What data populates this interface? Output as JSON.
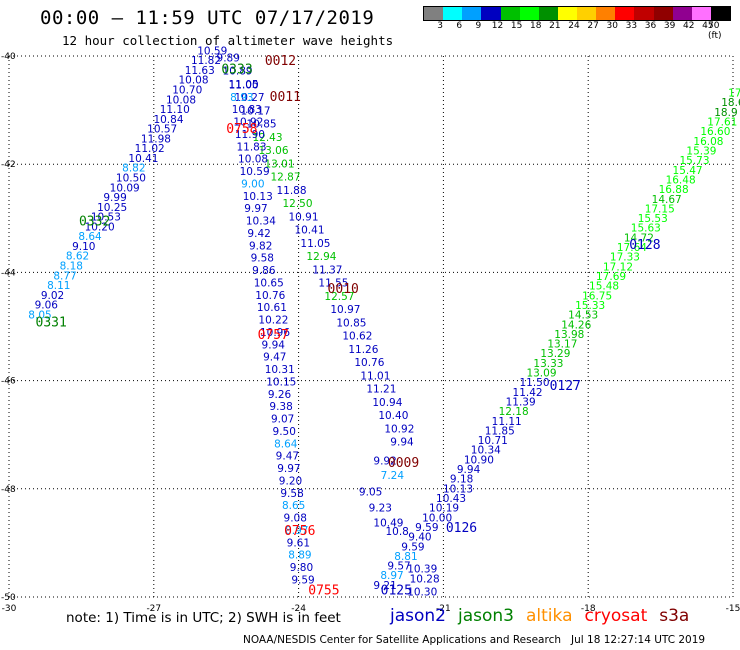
{
  "title": "00:00 – 11:59 UTC 07/17/2019",
  "subtitle": "12 hour collection of altimeter wave heights",
  "legend": {
    "colors": [
      "#808080",
      "#00ffff",
      "#00a0ff",
      "#0000c0",
      "#00c000",
      "#00ff00",
      "#009000",
      "#ffff00",
      "#ffd000",
      "#ff8000",
      "#ff0000",
      "#c00000",
      "#900000",
      "#900090",
      "#ff70ff",
      "#000000"
    ],
    "labels": [
      "3",
      "6",
      "9",
      "12",
      "15",
      "18",
      "21",
      "24",
      "27",
      "30",
      "33",
      "36",
      "39",
      "42",
      "45",
      "70 (ft)"
    ]
  },
  "note": "note: 1) Time is in UTC; 2) SWH is in feet",
  "satellites": [
    {
      "name": "jason2",
      "color": "#0000c0"
    },
    {
      "name": "jason3",
      "color": "#008000"
    },
    {
      "name": "altika",
      "color": "#ff9000"
    },
    {
      "name": "cryosat",
      "color": "#ff0000"
    },
    {
      "name": "s3a",
      "color": "#800000"
    }
  ],
  "credit": "NOAA/NESDIS Center for Satellite Applications and Research   Jul 18 12:27:14 UTC 2019",
  "map": {
    "lon_range": [
      -30,
      -15
    ],
    "lat_range": [
      -50,
      -40
    ],
    "lon_ticks": [
      "-30",
      "-27",
      "-24",
      "-21",
      "-18",
      "-15"
    ],
    "lat_ticks": [
      "-40",
      "-42",
      "-44",
      "-46",
      "-48",
      "-50"
    ],
    "grid": "dotted",
    "annotations": [
      {
        "text": "0012",
        "lon": -24.7,
        "lat": -40.17,
        "color": "#800000"
      },
      {
        "text": "0011",
        "lon": -24.6,
        "lat": -40.83,
        "color": "#800000"
      },
      {
        "text": "0758",
        "lon": -25.5,
        "lat": -41.42,
        "color": "#ff0000"
      },
      {
        "text": "0333",
        "lon": -25.6,
        "lat": -40.32,
        "color": "#008000"
      },
      {
        "text": "0332",
        "lon": -28.55,
        "lat": -43.13,
        "color": "#008000"
      },
      {
        "text": "0331",
        "lon": -29.45,
        "lat": -45.0,
        "color": "#008000"
      },
      {
        "text": "0010",
        "lon": -23.4,
        "lat": -44.38,
        "color": "#800000"
      },
      {
        "text": "0757",
        "lon": -24.85,
        "lat": -45.23,
        "color": "#ff0000"
      },
      {
        "text": "0009",
        "lon": -22.15,
        "lat": -47.6,
        "color": "#800000"
      },
      {
        "text": "0756",
        "lon": -24.3,
        "lat": -48.85,
        "color": "#ff0000"
      },
      {
        "text": "0755",
        "lon": -23.8,
        "lat": -49.95,
        "color": "#ff0000"
      },
      {
        "text": "0125",
        "lon": -22.3,
        "lat": -49.95,
        "color": "#0000c0"
      },
      {
        "text": "0126",
        "lon": -20.95,
        "lat": -48.8,
        "color": "#0000c0"
      },
      {
        "text": "0127",
        "lon": -18.8,
        "lat": -46.17,
        "color": "#0000c0"
      },
      {
        "text": "0128",
        "lon": -17.15,
        "lat": -43.57,
        "color": "#0000c0"
      }
    ],
    "tracks": [
      {
        "name": "jason3 0331-0333",
        "lon_start": -29.6,
        "lat_start": -44.85,
        "lon_end": -26.1,
        "lat_end": -39.97,
        "values": [
          "8.05",
          "9.06",
          "9.02",
          "8.11",
          "8.77",
          "8.18",
          "8.62",
          "9.10",
          "8.64",
          "10.20",
          "10.53",
          "10.25",
          "9.99",
          "10.09",
          "10.50",
          "8.82",
          "10.41",
          "11.02",
          "11.98",
          "10.57",
          "10.84",
          "11.10",
          "10.08",
          "10.70",
          "10.08",
          "11.63",
          "11.82",
          "10.59"
        ]
      },
      {
        "name": "s3a 0010-0012",
        "lon_start": -25.7,
        "lat_start": -40.1,
        "lon_end": -22.1,
        "lat_end": -47.2,
        "values": [
          "9.89",
          "10.89",
          "11.05",
          "10.27",
          "10.17",
          "10.85",
          "12.43",
          "13.06",
          "13.01",
          "12.87",
          "11.88",
          "12.50",
          "10.91",
          "10.41",
          "11.05",
          "12.94",
          "11.37",
          "11.55",
          "12.57",
          "10.97",
          "10.85",
          "10.62",
          "11.26",
          "10.76",
          "11.01",
          "11.21",
          "10.94",
          "10.40",
          "10.92",
          "9.94"
        ]
      },
      {
        "name": "cryosat 0755-0758",
        "lon_start": -25.45,
        "lat_start": -40.6,
        "lon_end": -24.15,
        "lat_end": -49.75,
        "values": [
          "11.00",
          "8.93",
          "10.83",
          "10.92",
          "11.90",
          "11.83",
          "10.08",
          "10.59",
          "9.00",
          "10.13",
          "9.97",
          "10.34",
          "9.42",
          "9.82",
          "9.58",
          "9.86",
          "10.65",
          "10.76",
          "10.61",
          "10.22",
          "10.96",
          "9.94",
          "9.47",
          "10.31",
          "10.15",
          "9.26",
          "9.38",
          "9.07",
          "9.50",
          "8.64",
          "9.47",
          "9.97",
          "9.20",
          "9.58",
          "8.65",
          "9.08",
          "8.97",
          "9.61",
          "8.89",
          "9.80",
          "9.59"
        ]
      },
      {
        "name": "jason2 0125-0128",
        "lon_start": -22.45,
        "lat_start": -49.85,
        "lon_end": -15.1,
        "lat_end": -40.75,
        "values": [
          "9.21",
          "8.97",
          "9.57",
          "8.81",
          "9.59",
          "9.40",
          "9.59",
          "10.00",
          "10.19",
          "10.43",
          "10.13",
          "9.18",
          "9.94",
          "10.90",
          "10.34",
          "10.71",
          "11.85",
          "11.11",
          "12.18",
          "11.39",
          "11.42",
          "11.50",
          "13.09",
          "13.33",
          "13.29",
          "13.17",
          "13.98",
          "14.26",
          "14.53",
          "15.33",
          "16.75",
          "15.48",
          "17.69",
          "17.12",
          "17.33",
          "17.64",
          "14.72",
          "15.63",
          "15.53",
          "17.15",
          "14.67",
          "16.88",
          "16.48",
          "15.47",
          "15.73",
          "15.39",
          "16.08",
          "16.60",
          "17.61",
          "18.9",
          "18.6",
          "17"
        ]
      }
    ],
    "extra_labels": [
      {
        "text": "7.24",
        "lon": -22.3,
        "lat": -47.82
      },
      {
        "text": "9.05",
        "lon": -22.75,
        "lat": -48.12
      },
      {
        "text": "9.23",
        "lon": -22.55,
        "lat": -48.42
      },
      {
        "text": "10.49",
        "lon": -22.45,
        "lat": -48.7
      },
      {
        "text": "10.8",
        "lon": -22.2,
        "lat": -48.85
      },
      {
        "text": "10.39",
        "lon": -21.75,
        "lat": -49.55
      },
      {
        "text": "10.28",
        "lon": -21.7,
        "lat": -49.73
      },
      {
        "text": "10.30",
        "lon": -21.75,
        "lat": -49.97
      },
      {
        "text": "9.92",
        "lon": -22.45,
        "lat": -47.55
      }
    ]
  }
}
